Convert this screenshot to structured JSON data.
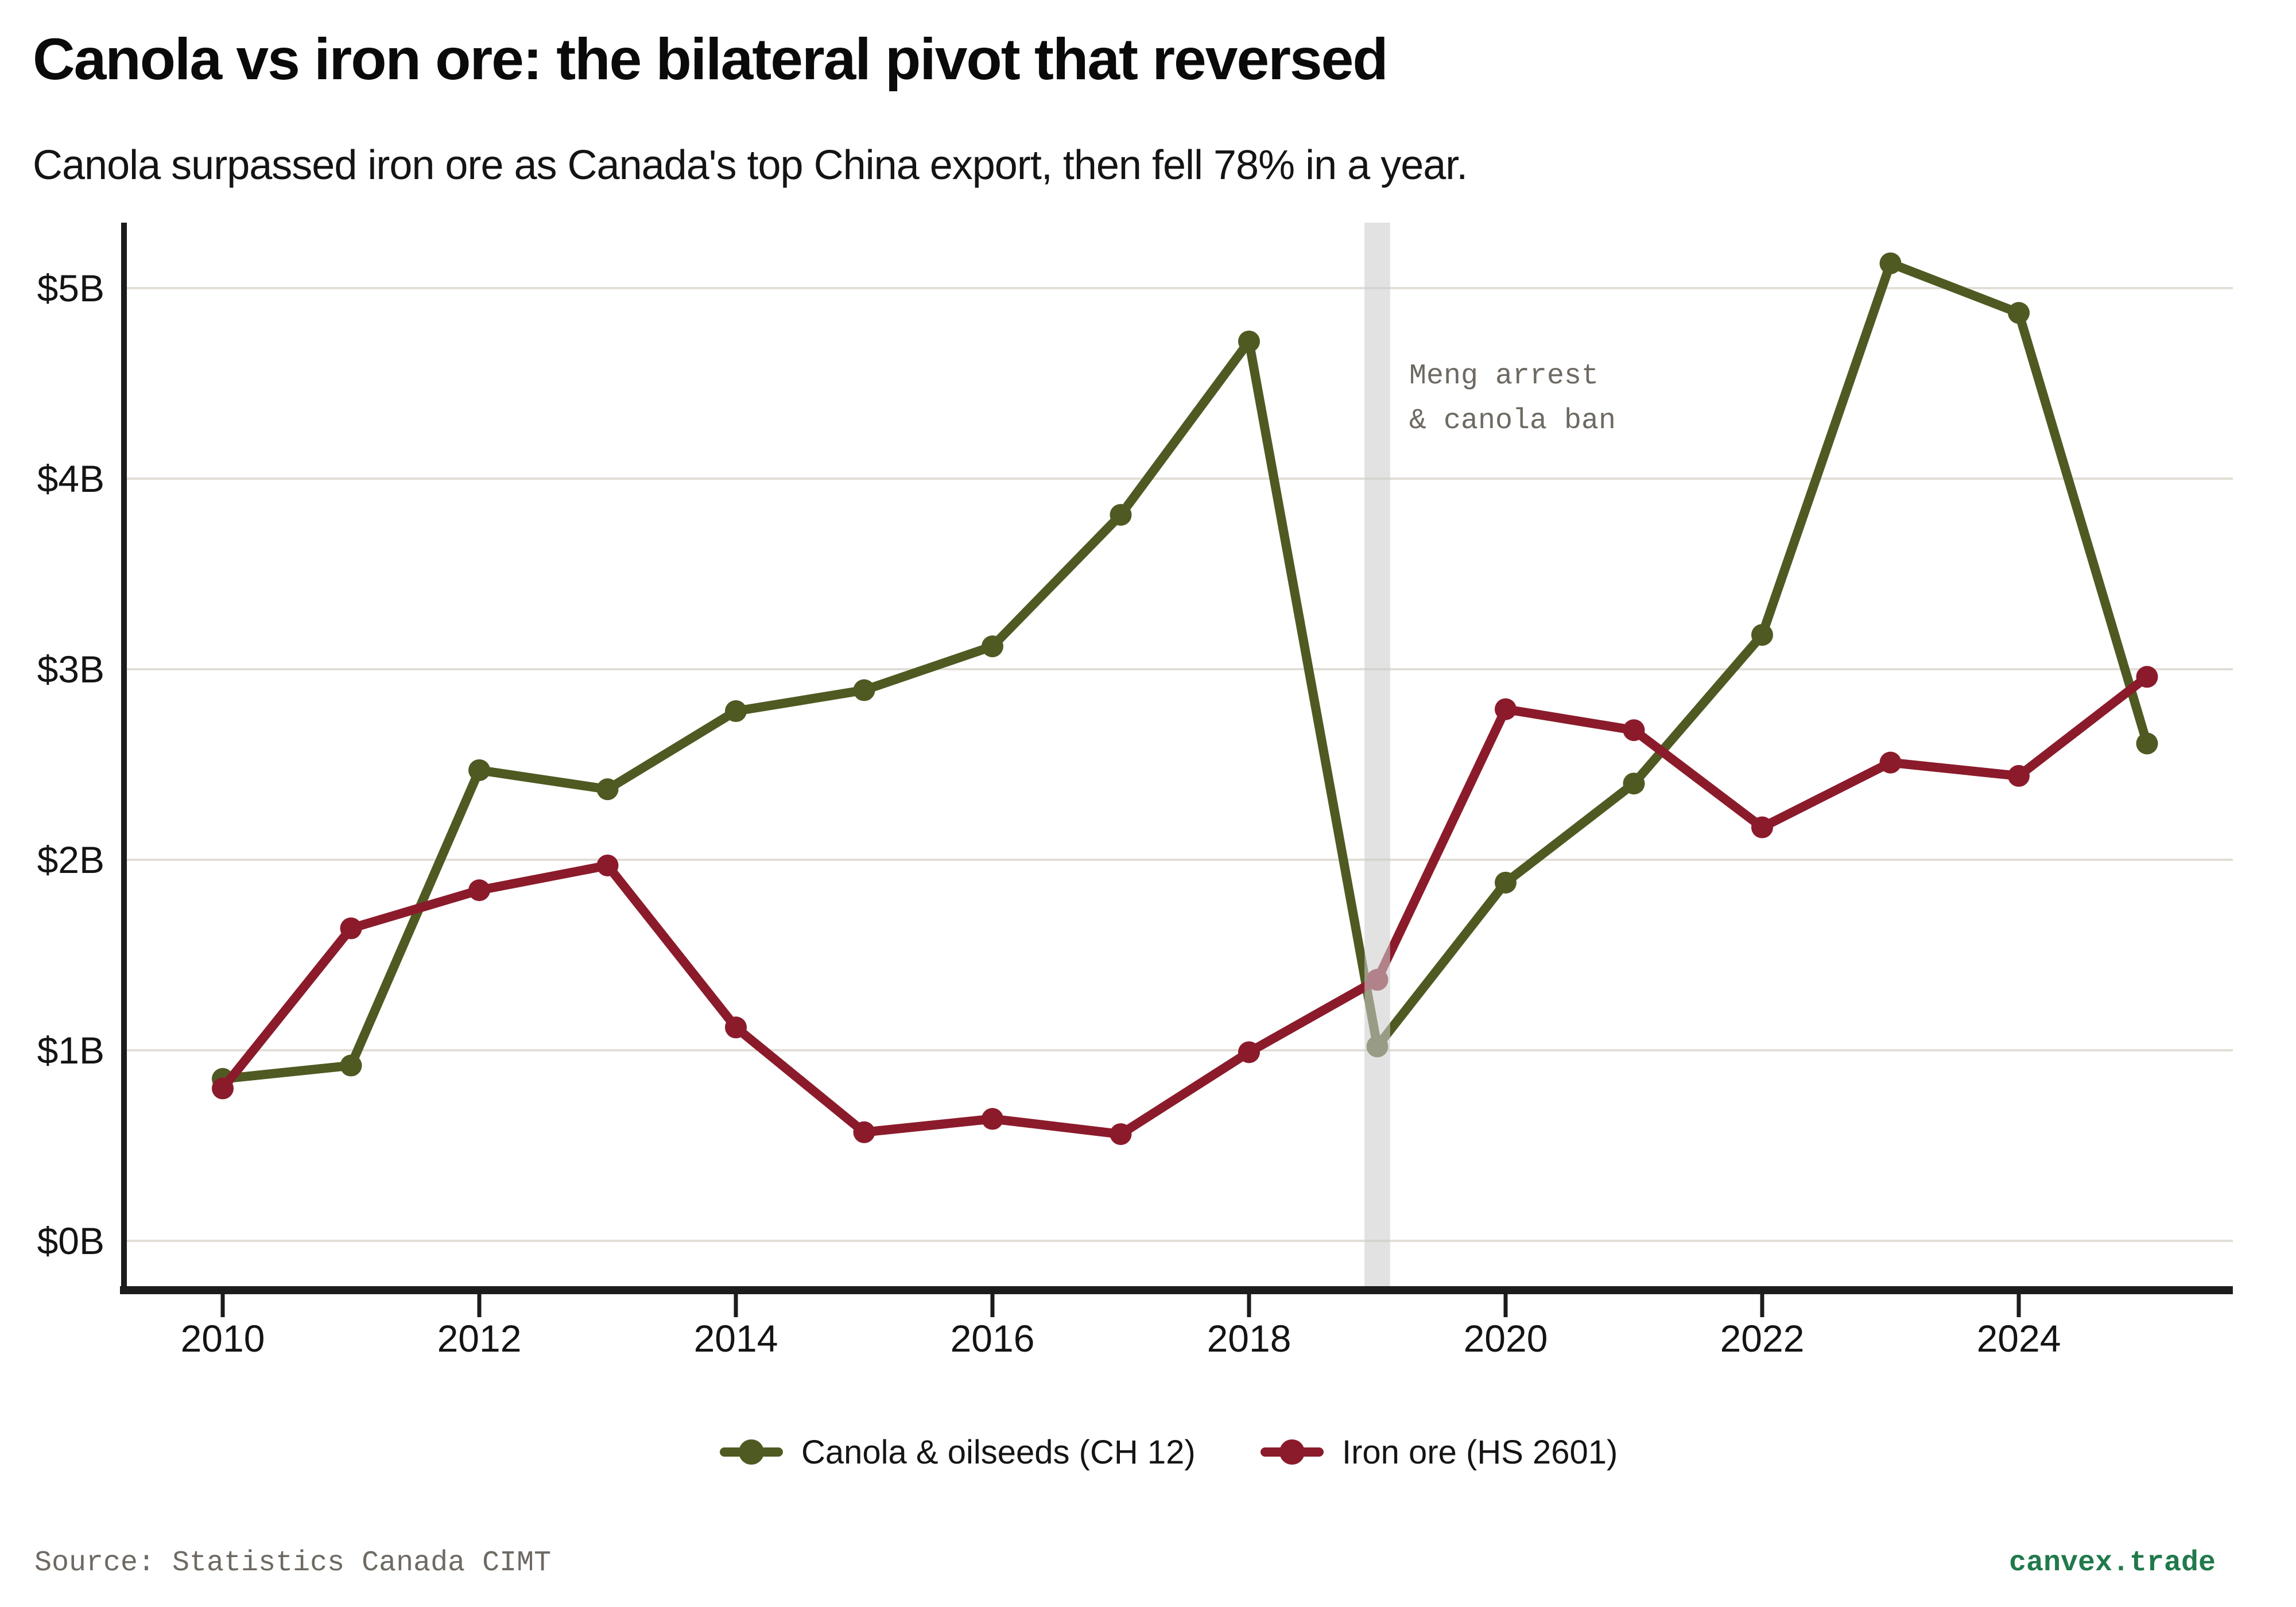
{
  "header": {
    "title": "Canola vs iron ore: the bilateral pivot that reversed",
    "subtitle": "Canola surpassed iron ore as Canada's top China export, then fell 78% in a year."
  },
  "footer": {
    "source": "Source: Statistics Canada CIMT",
    "brand": "canvex.trade"
  },
  "colors": {
    "canola": "#4f5a22",
    "iron_ore": "#8b1b2b",
    "gridline": "#e2ded7",
    "axis": "#1c1c1c",
    "event_band": "rgba(205,205,205,0.58)",
    "annotation_text": "#6e6a63",
    "brand_text": "#21794b"
  },
  "chart_data": {
    "type": "line",
    "title": "Canola vs iron ore: the bilateral pivot that reversed",
    "subtitle": "Canola surpassed iron ore as Canada's top China export, then fell 78% in a year.",
    "xlabel": "",
    "ylabel": "",
    "x": [
      2010,
      2011,
      2012,
      2013,
      2014,
      2015,
      2016,
      2017,
      2018,
      2019,
      2020,
      2021,
      2022,
      2023,
      2024,
      2025
    ],
    "series": [
      {
        "name": "Canola & oilseeds (CH 12)",
        "color": "#4f5a22",
        "values": [
          0.85,
          0.92,
          2.47,
          2.37,
          2.78,
          2.89,
          3.12,
          3.81,
          4.72,
          1.02,
          1.88,
          2.4,
          3.18,
          5.13,
          4.87,
          2.61
        ]
      },
      {
        "name": "Iron ore (HS 2601)",
        "color": "#8b1b2b",
        "values": [
          0.8,
          1.64,
          1.84,
          1.97,
          1.12,
          0.57,
          0.64,
          0.56,
          0.99,
          1.37,
          2.79,
          2.68,
          2.17,
          2.51,
          2.44,
          2.96
        ]
      }
    ],
    "units": "billions USD ($B)",
    "xticks": [
      {
        "value": 2010,
        "label": "2010"
      },
      {
        "value": 2012,
        "label": "2012"
      },
      {
        "value": 2014,
        "label": "2014"
      },
      {
        "value": 2016,
        "label": "2016"
      },
      {
        "value": 2018,
        "label": "2018"
      },
      {
        "value": 2020,
        "label": "2020"
      },
      {
        "value": 2022,
        "label": "2022"
      },
      {
        "value": 2024,
        "label": "2024"
      }
    ],
    "yticks": [
      {
        "value": 0,
        "label": "$0B"
      },
      {
        "value": 1,
        "label": "$1B"
      },
      {
        "value": 2,
        "label": "$2B"
      },
      {
        "value": 3,
        "label": "$3B"
      },
      {
        "value": 4,
        "label": "$4B"
      },
      {
        "value": 5,
        "label": "$5B"
      }
    ],
    "xlim": [
      2009.23,
      2025.67
    ],
    "ylim": [
      -0.26,
      5.34
    ],
    "grid": "horizontal",
    "legend_position": "bottom-center",
    "event_band": {
      "x": 2019,
      "width_years": 0.2,
      "annotation_line1": "Meng arrest",
      "annotation_line2": "& canola ban"
    }
  }
}
